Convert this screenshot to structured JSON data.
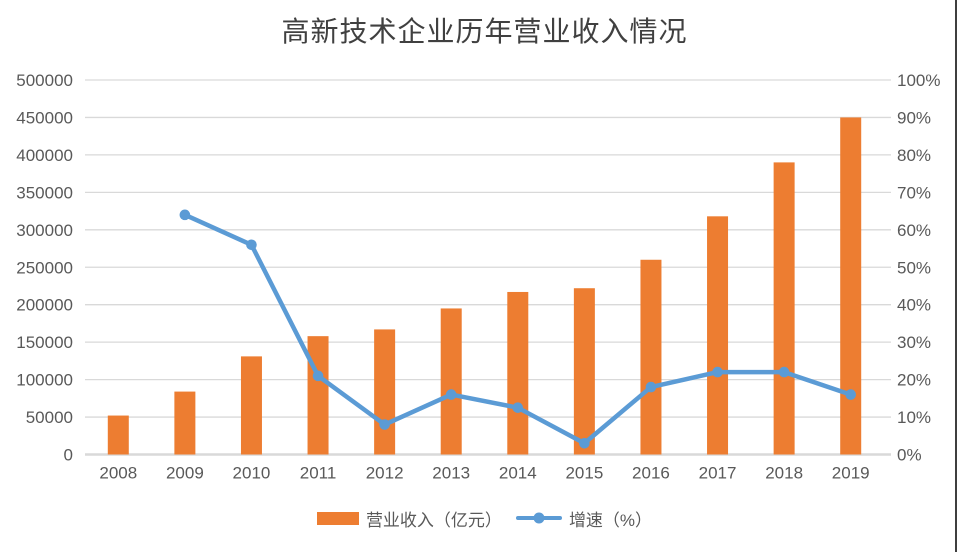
{
  "title": "高新技术企业历年营业收入情况",
  "legend": [
    {
      "label": "营业收入（亿元）",
      "type": "bar"
    },
    {
      "label": "增速（%）",
      "type": "line"
    }
  ],
  "colors": {
    "bar": "#ED7D31",
    "line": "#5B9BD5",
    "grid": "#D9D9D9",
    "axis": "#D9D9D9",
    "text": "#595959",
    "title_text": "#404040",
    "edge": "#3F3F3F"
  },
  "chart_data": {
    "type": "bar",
    "subtype": "bar+line combo, dual axis",
    "title": "高新技术企业历年营业收入情况",
    "categories": [
      "2008",
      "2009",
      "2010",
      "2011",
      "2012",
      "2013",
      "2014",
      "2015",
      "2016",
      "2017",
      "2018",
      "2019"
    ],
    "series": [
      {
        "name": "营业收入（亿元）",
        "type": "bar",
        "axis": "left",
        "values": [
          52000,
          84000,
          131000,
          158000,
          167000,
          195000,
          217000,
          222000,
          260000,
          318000,
          390000,
          450000
        ]
      },
      {
        "name": "增速（%）",
        "type": "line",
        "axis": "right",
        "values": [
          null,
          64,
          56,
          21,
          8,
          16,
          12.5,
          3,
          18,
          22,
          22,
          16
        ]
      }
    ],
    "left_axis": {
      "min": 0,
      "max": 500000,
      "step": 50000,
      "suffix": "",
      "tick_labels": [
        "0",
        "50000",
        "100000",
        "150000",
        "200000",
        "250000",
        "300000",
        "350000",
        "400000",
        "450000",
        "500000"
      ]
    },
    "right_axis": {
      "min": 0,
      "max": 100,
      "step": 10,
      "suffix": "%",
      "tick_labels": [
        "0%",
        "10%",
        "20%",
        "30%",
        "40%",
        "50%",
        "60%",
        "70%",
        "80%",
        "90%",
        "100%"
      ]
    },
    "grid": true,
    "legend_position": "bottom"
  }
}
